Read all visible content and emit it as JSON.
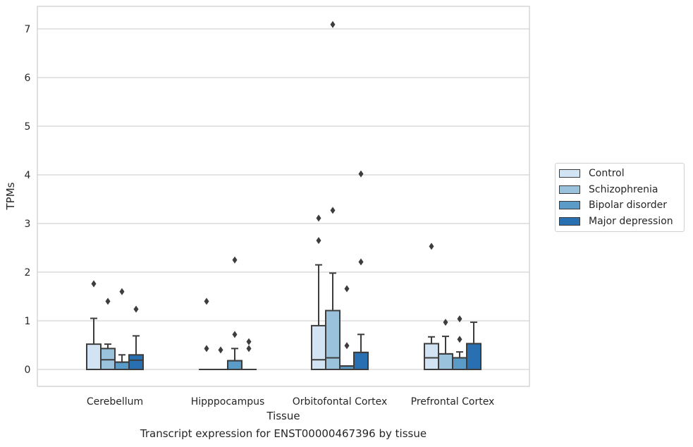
{
  "caption": "Transcript expression for ENST00000467396 by tissue",
  "chart_data": {
    "type": "box",
    "xlabel": "Tissue",
    "ylabel": "TPMs",
    "ylim": [
      -0.35,
      7.5
    ],
    "yticks": [
      0,
      1,
      2,
      3,
      4,
      5,
      6,
      7
    ],
    "grid": "horizontal",
    "legend_position": "right",
    "categories": [
      "Cerebellum",
      "Hipppocampus",
      "Orbitofontal Cortex",
      "Prefrontal Cortex"
    ],
    "series": [
      {
        "name": "Control",
        "color": "#d2e3f3",
        "boxes": [
          {
            "whislo": 0,
            "q1": 0,
            "med": 0,
            "q3": 0.52,
            "whishi": 1.05,
            "fliers": [
              1.76
            ]
          },
          {
            "whislo": 0,
            "q1": 0,
            "med": 0,
            "q3": 0,
            "whishi": 0,
            "fliers": [
              0.43,
              1.4
            ]
          },
          {
            "whislo": 0,
            "q1": 0,
            "med": 0.2,
            "q3": 0.9,
            "whishi": 2.15,
            "fliers": [
              2.65,
              3.11
            ]
          },
          {
            "whislo": 0,
            "q1": 0,
            "med": 0.24,
            "q3": 0.53,
            "whishi": 0.67,
            "fliers": [
              2.53
            ]
          }
        ]
      },
      {
        "name": "Schizophrenia",
        "color": "#9ac2dc",
        "boxes": [
          {
            "whislo": 0,
            "q1": 0,
            "med": 0.2,
            "q3": 0.43,
            "whishi": 0.52,
            "fliers": [
              1.4
            ]
          },
          {
            "whislo": 0,
            "q1": 0,
            "med": 0,
            "q3": 0,
            "whishi": 0,
            "fliers": [
              0.4
            ]
          },
          {
            "whislo": 0,
            "q1": 0,
            "med": 0.24,
            "q3": 1.21,
            "whishi": 1.98,
            "fliers": [
              3.27,
              7.09
            ]
          },
          {
            "whislo": 0,
            "q1": 0,
            "med": 0.32,
            "q3": 0.32,
            "whishi": 0.68,
            "fliers": [
              0.97
            ]
          }
        ]
      },
      {
        "name": "Bipolar disorder",
        "color": "#5b9bc8",
        "boxes": [
          {
            "whislo": 0,
            "q1": 0,
            "med": 0.15,
            "q3": 0.15,
            "whishi": 0.3,
            "fliers": [
              1.6
            ]
          },
          {
            "whislo": 0,
            "q1": 0,
            "med": 0.18,
            "q3": 0.18,
            "whishi": 0.43,
            "fliers": [
              0.72,
              2.25
            ]
          },
          {
            "whislo": 0,
            "q1": 0,
            "med": 0.07,
            "q3": 0.07,
            "whishi": 0.07,
            "fliers": [
              0.49,
              1.66
            ]
          },
          {
            "whislo": 0,
            "q1": 0,
            "med": 0.24,
            "q3": 0.24,
            "whishi": 0.36,
            "fliers": [
              0.62,
              1.04
            ]
          }
        ]
      },
      {
        "name": "Major depression",
        "color": "#2870b1",
        "boxes": [
          {
            "whislo": 0,
            "q1": 0,
            "med": 0.19,
            "q3": 0.3,
            "whishi": 0.69,
            "fliers": [
              1.24
            ]
          },
          {
            "whislo": 0,
            "q1": 0,
            "med": 0,
            "q3": 0,
            "whishi": 0,
            "fliers": [
              0.43,
              0.57
            ]
          },
          {
            "whislo": 0,
            "q1": 0,
            "med": 0.35,
            "q3": 0.35,
            "whishi": 0.72,
            "fliers": [
              2.21,
              4.02
            ]
          },
          {
            "whislo": 0,
            "q1": 0,
            "med": 0.53,
            "q3": 0.53,
            "whishi": 0.97,
            "fliers": []
          }
        ]
      }
    ]
  }
}
